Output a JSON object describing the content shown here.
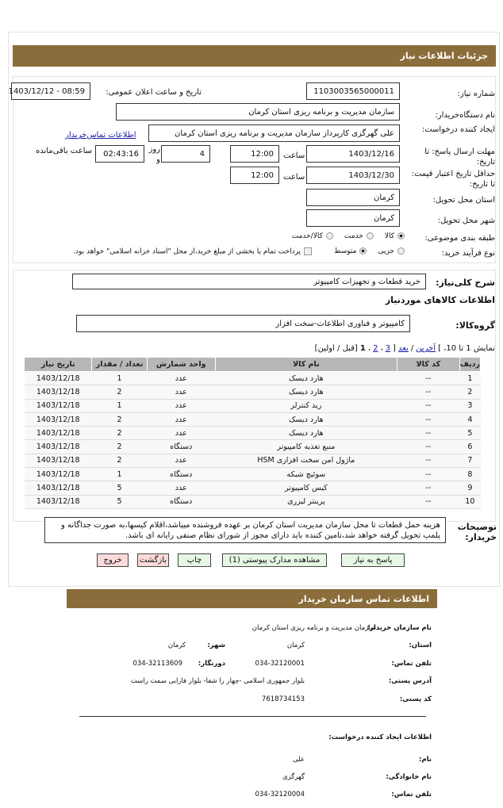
{
  "header": {
    "title": "جزئیات اطلاعات نیاز"
  },
  "colors": {
    "accent": "#8b6d3b",
    "green_button": "#e6f7e6",
    "red_button": "#fadada",
    "link": "#1a1aa8"
  },
  "form": {
    "need_number_label": "شماره نیاز:",
    "need_number": "1103003565000011",
    "announce_label": "تاریخ و ساعت اعلان عمومی:",
    "announce_value": "1403/12/12 - 08:59",
    "buyer_label": "نام دستگاه‌خریدار:",
    "buyer_value": "سازمان مدیریت و برنامه ریزی استان کرمان",
    "creator_label": "ایجاد کننده درخواست:",
    "creator_value": "علی گهرگزی کارپرداز سازمان مدیریت و برنامه ریزی استان کرمان",
    "contact_link": "اطلاعات تماس‌خریدار",
    "deadline_label": "مهلت ارسال پاسخ: تا تاریخ:",
    "deadline_date": "1403/12/16",
    "time_label": "ساعت",
    "deadline_time": "12:00",
    "days_value": "4",
    "days_label": "روز و",
    "remaining_value": "02:43:16",
    "remaining_label": "ساعت باقی‌مانده",
    "validity_label": "حداقل تاریخ اعتبار قیمت: تا تاریخ:",
    "validity_date": "1403/12/30",
    "validity_time": "12:00",
    "province_label": "استان محل تحویل:",
    "province_value": "کرمان",
    "city_label": "شهر محل تحویل:",
    "city_value": "کرمان",
    "category_label": "طبقه بندی موضوعی:",
    "category_options": [
      "کالا",
      "خدمت",
      "کالا/خدمت"
    ],
    "category_selected": "کالا",
    "process_label": "نوع فرآیند خرید:",
    "process_options": [
      "جزیی",
      "متوسط"
    ],
    "process_selected": "متوسط",
    "treasury_note": "پرداخت تمام یا بخشی از مبلغ خرید،از محل \"اسناد خزانه اسلامی\" خواهد بود."
  },
  "summary": {
    "label": "شرح کلی‌نیاز:",
    "value": "خرید قطعات و تجهیزات کامپیوتر",
    "goods_title": "اطلاعات کالاهای موردنیاز",
    "group_label": "گروه‌کالا:",
    "group_value": "کامپیوتر و فناوری اطلاعات-سخت افزار"
  },
  "pagination": {
    "text": "نمایش 1 تا 10، ]",
    "last": "آخرین",
    "sep1": "/",
    "next": "بعد",
    "bracket": "[",
    "p3": "3",
    "c1": "،",
    "p2": "2",
    "c2": "،",
    "p1": "1",
    "rest": "[قبل / اولین]"
  },
  "table": {
    "headers": [
      "ردیف",
      "کد کالا",
      "نام کالا",
      "واحد شمارش",
      "تعداد / مقدار",
      "تاریخ نیاز"
    ],
    "rows": [
      [
        "1",
        "--",
        "هارد دیسک",
        "عدد",
        "1",
        "1403/12/18"
      ],
      [
        "2",
        "--",
        "هارد دیسک",
        "عدد",
        "2",
        "1403/12/18"
      ],
      [
        "3",
        "--",
        "رید کنترلر",
        "عدد",
        "1",
        "1403/12/18"
      ],
      [
        "4",
        "--",
        "هارد دیسک",
        "عدد",
        "2",
        "1403/12/18"
      ],
      [
        "5",
        "--",
        "هارد دیسک",
        "عدد",
        "2",
        "1403/12/18"
      ],
      [
        "6",
        "--",
        "منبع تغذیه کامپیوتر",
        "دستگاه",
        "2",
        "1403/12/18"
      ],
      [
        "7",
        "--",
        "ماژول امن سخت افزاری HSM",
        "عدد",
        "2",
        "1403/12/18"
      ],
      [
        "8",
        "--",
        "سوئیچ شبکه",
        "دستگاه",
        "1",
        "1403/12/18"
      ],
      [
        "9",
        "--",
        "کیس کامپیوتر",
        "عدد",
        "5",
        "1403/12/18"
      ],
      [
        "10",
        "--",
        "پرینتر لیزری",
        "دستگاه",
        "5",
        "1403/12/18"
      ]
    ]
  },
  "notes": {
    "label": "توضیحات خریدار:",
    "value": "هزینه حمل قطعات تا محل سازمان مدیریت استان کرمان بر عهده فروشنده میباشد،اقلام کیسها،به صورت جداگانه و پلمپ تحویل گرفته خواهد شد،تامین کننده باید دارای مجوز از شورای نظام صنفی رایانه ای باشد."
  },
  "buttons": {
    "reply": "پاسخ به نیاز",
    "attachments": "مشاهده مدارک پیوستی (1)",
    "print": "چاپ",
    "back": "بازگشت",
    "exit": "خروج"
  },
  "contact": {
    "title": "اطلاعات تماس سازمان خریدار",
    "org_label": "نام سازمان خریدار:",
    "org_value": "سازمان مدیریت و برنامه ریزی استان کرمان",
    "province_label": "استان:",
    "province_value": "کرمان",
    "city_label": "شهر:",
    "city_value": "کرمان",
    "phone_label": "تلفن تماس:",
    "phone_value": "034-32120001",
    "fax_label": "دورنگار:",
    "fax_value": "034-32113609",
    "address_label": "آدرس پستی:",
    "address_value": "بلوار جمهوری اسلامی -چهار را شفا- بلوار فارابی سمت راست",
    "postal_label": "کد پستی:",
    "postal_value": "7618734153",
    "creator_title": "اطلاعات ایجاد کننده درخواست:",
    "name_label": "نام:",
    "name_value": "علی",
    "family_label": "نام خانوادگی:",
    "family_value": "گهرگزی",
    "cphone_label": "تلفن تماس:",
    "cphone_value": "034-32120004"
  }
}
